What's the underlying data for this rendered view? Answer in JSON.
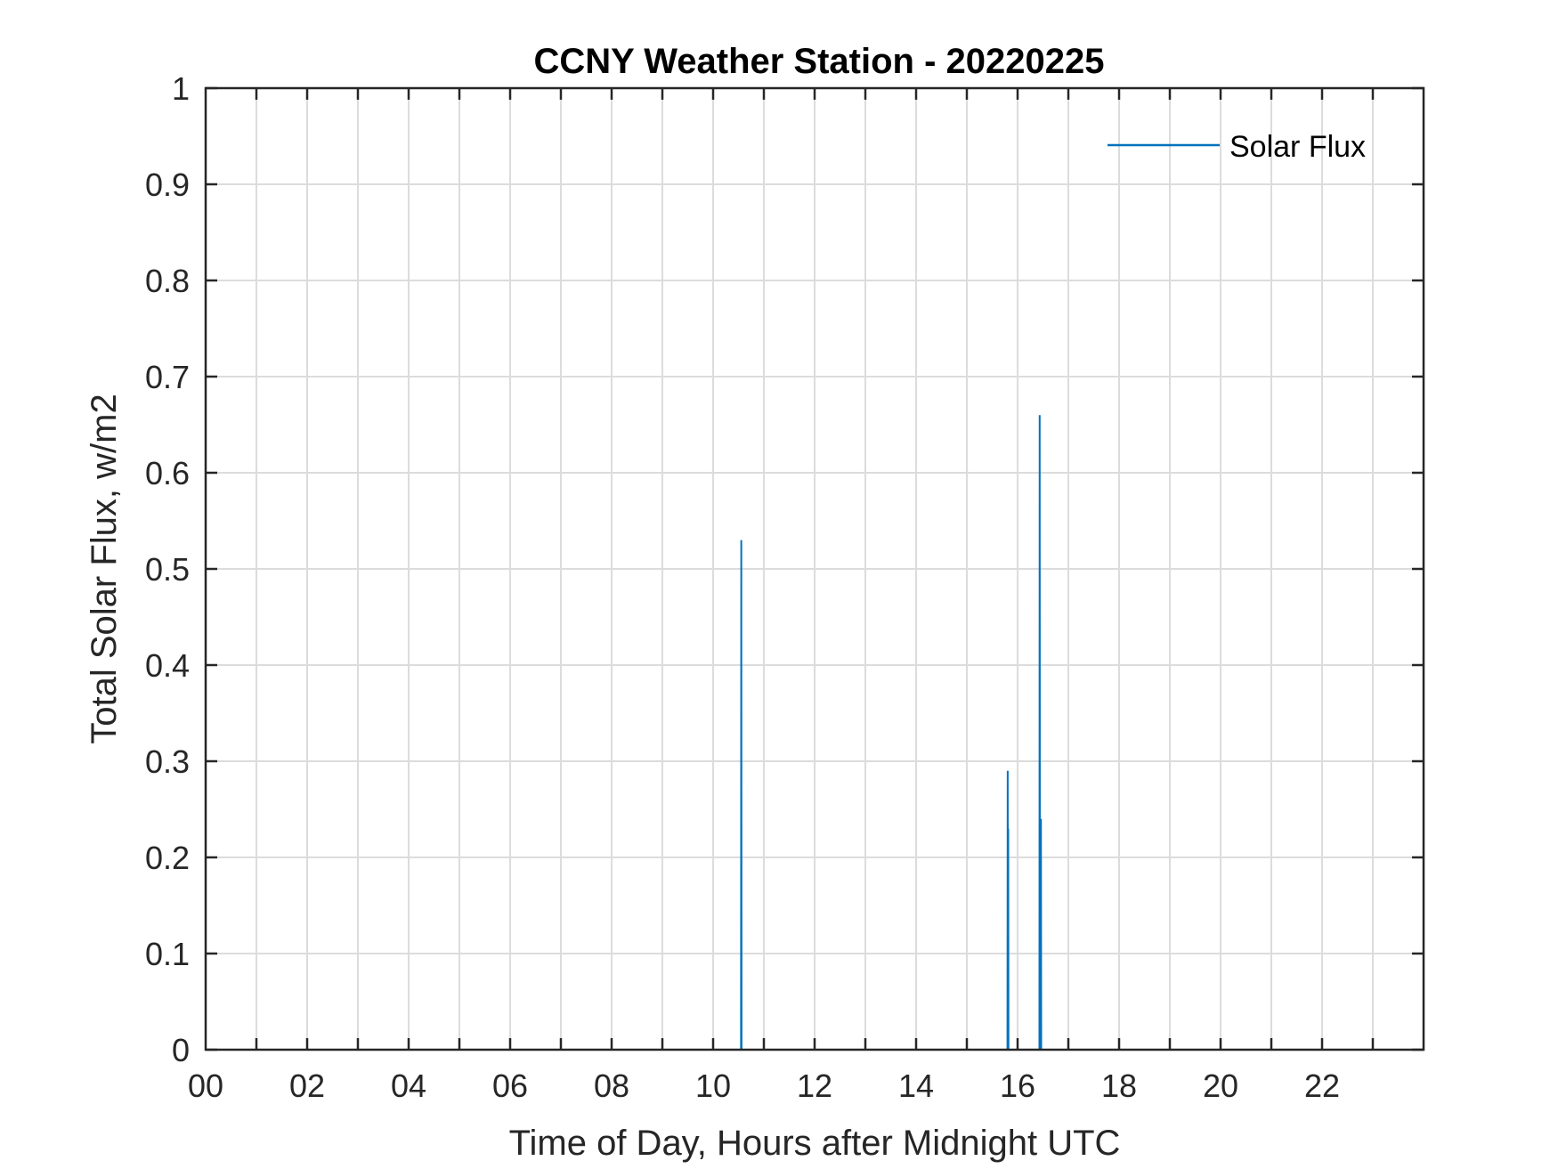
{
  "chart_data": {
    "type": "line",
    "title": "CCNY Weather Station - 20220225",
    "xlabel": "Time of Day, Hours after Midnight UTC",
    "ylabel": "Total Solar Flux, w/m2",
    "xlim": [
      0,
      24
    ],
    "ylim": [
      0,
      1
    ],
    "x_tick_values": [
      0,
      2,
      4,
      6,
      8,
      10,
      12,
      14,
      16,
      18,
      20,
      22
    ],
    "x_tick_labels": [
      "00",
      "02",
      "04",
      "06",
      "08",
      "10",
      "12",
      "14",
      "16",
      "18",
      "20",
      "22"
    ],
    "x_grid_step": 1,
    "y_ticks": [
      0,
      0.1,
      0.2,
      0.3,
      0.4,
      0.5,
      0.6,
      0.7,
      0.8,
      0.9,
      1
    ],
    "y_tick_labels": [
      "0",
      "0.1",
      "0.2",
      "0.3",
      "0.4",
      "0.5",
      "0.6",
      "0.7",
      "0.8",
      "0.9",
      "1"
    ],
    "grid": true,
    "legend_position": "top-right",
    "series": [
      {
        "name": "Solar Flux",
        "color": "#0072BD",
        "x": [
          0,
          10.55,
          10.555,
          10.56,
          15.8,
          15.805,
          15.81,
          15.815,
          15.82,
          16.43,
          16.435,
          16.44,
          16.445,
          16.45,
          16.46,
          16.465,
          16.47,
          16.475,
          16.48,
          24
        ],
        "y": [
          0,
          0,
          0.53,
          0,
          0,
          0.29,
          0,
          0.23,
          0,
          0,
          0.66,
          0,
          0.22,
          0.05,
          0.24,
          0,
          0,
          0,
          0,
          0
        ]
      }
    ]
  }
}
